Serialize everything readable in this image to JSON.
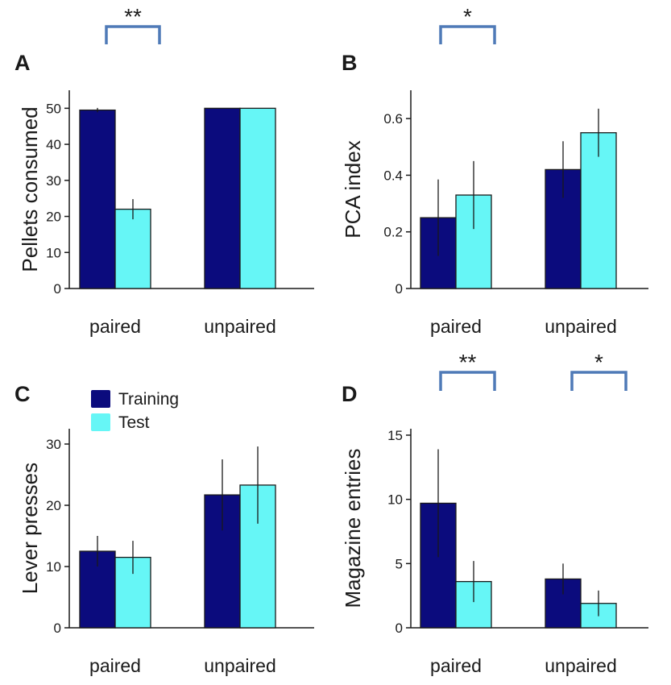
{
  "colors": {
    "training": "#0b0b7d",
    "test": "#66f6f6",
    "bracket": "#4f7ab7",
    "axis": "#1a1a1a"
  },
  "legend": {
    "items": [
      {
        "label": "Training",
        "color": "#0b0b7d"
      },
      {
        "label": "Test",
        "color": "#66f6f6"
      }
    ]
  },
  "chart_data": [
    {
      "panel": "A",
      "type": "bar",
      "categories": [
        "paired",
        "unpaired"
      ],
      "series": [
        {
          "name": "Training",
          "values": [
            49.5,
            50
          ],
          "errors": [
            0.6,
            0
          ]
        },
        {
          "name": "Test",
          "values": [
            22,
            50
          ],
          "errors": [
            2.8,
            0
          ]
        }
      ],
      "ylabel": "Pellets consumed",
      "ylim": [
        0,
        55
      ],
      "yticks": [
        0,
        10,
        20,
        30,
        40,
        50
      ],
      "yticklabels": [
        "0",
        "10",
        "20",
        "30",
        "40",
        "50"
      ],
      "significance": [
        {
          "category": "paired",
          "label": "**"
        }
      ]
    },
    {
      "panel": "B",
      "type": "bar",
      "categories": [
        "paired",
        "unpaired"
      ],
      "series": [
        {
          "name": "Training",
          "values": [
            0.25,
            0.42
          ],
          "errors": [
            0.135,
            0.1
          ]
        },
        {
          "name": "Test",
          "values": [
            0.33,
            0.55
          ],
          "errors": [
            0.12,
            0.085
          ]
        }
      ],
      "ylabel": "PCA index",
      "ylim": [
        0,
        0.7
      ],
      "yticks": [
        0,
        0.2,
        0.4,
        0.6
      ],
      "yticklabels": [
        "0",
        "0.2",
        "0.4",
        "0.6"
      ],
      "significance": [
        {
          "category": "paired",
          "label": "*"
        }
      ]
    },
    {
      "panel": "C",
      "type": "bar",
      "categories": [
        "paired",
        "unpaired"
      ],
      "series": [
        {
          "name": "Training",
          "values": [
            12.5,
            21.7
          ],
          "errors": [
            2.5,
            5.8
          ]
        },
        {
          "name": "Test",
          "values": [
            11.5,
            23.3
          ],
          "errors": [
            2.7,
            6.3
          ]
        }
      ],
      "ylabel": "Lever presses",
      "ylim": [
        0,
        32.5
      ],
      "yticks": [
        0,
        10,
        20,
        30
      ],
      "yticklabels": [
        "0",
        "10",
        "20",
        "30"
      ],
      "significance": []
    },
    {
      "panel": "D",
      "type": "bar",
      "categories": [
        "paired",
        "unpaired"
      ],
      "series": [
        {
          "name": "Training",
          "values": [
            9.7,
            3.8
          ],
          "errors": [
            4.2,
            1.2
          ]
        },
        {
          "name": "Test",
          "values": [
            3.6,
            1.9
          ],
          "errors": [
            1.6,
            1.0
          ]
        }
      ],
      "ylabel": "Magazine entries",
      "ylim": [
        0,
        15.5
      ],
      "yticks": [
        0,
        5,
        10,
        15
      ],
      "yticklabels": [
        "0",
        "5",
        "10",
        "15"
      ],
      "significance": [
        {
          "category": "paired",
          "label": "**"
        },
        {
          "category": "unpaired",
          "label": "*"
        }
      ]
    }
  ]
}
